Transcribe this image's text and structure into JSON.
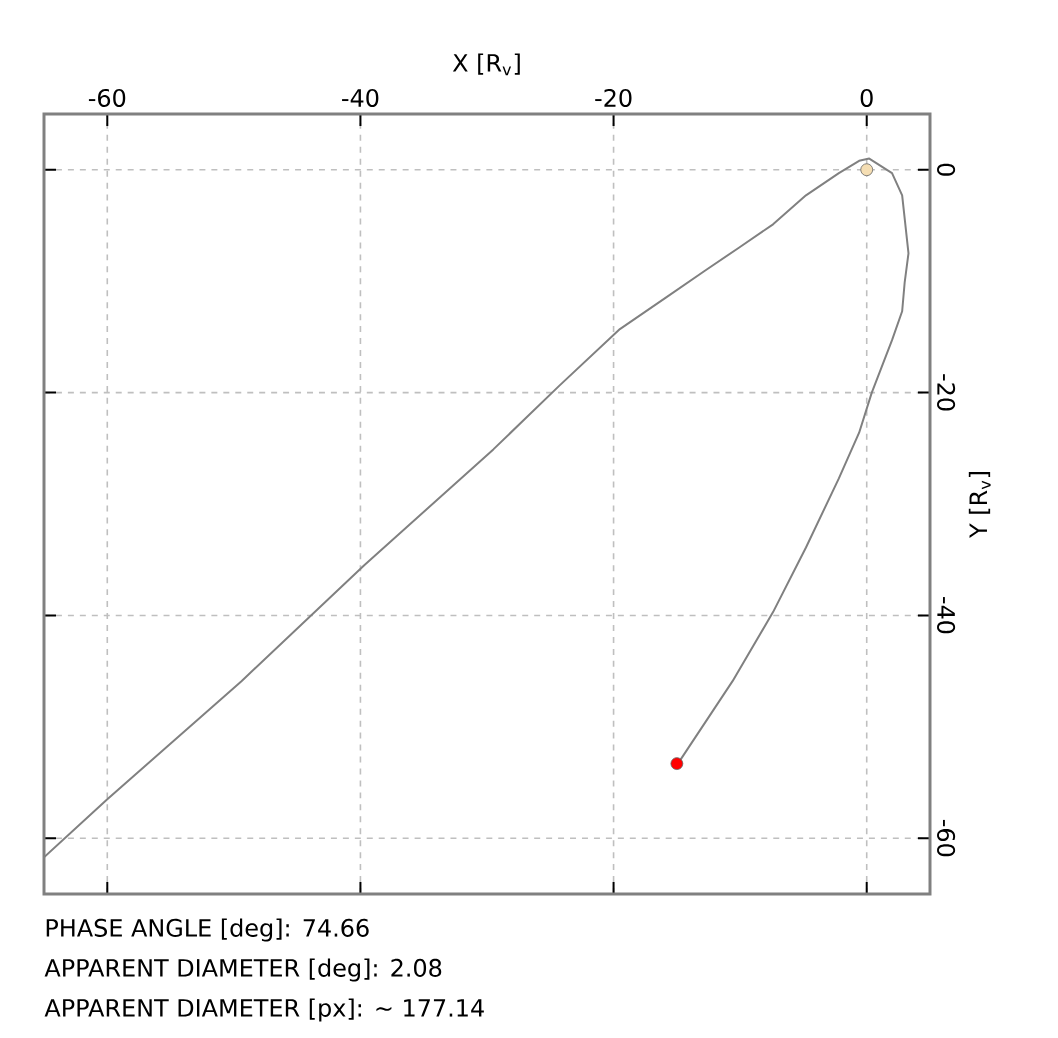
{
  "chart_data": {
    "type": "line",
    "xlabel": "X [R$_{v}$]",
    "ylabel": "Y [R$_{v}$]",
    "xlim": [
      -65,
      5
    ],
    "ylim": [
      -65,
      5
    ],
    "xticks": [
      -60,
      -40,
      -20,
      0
    ],
    "yticks": [
      -60,
      -40,
      -20,
      0
    ],
    "grid": true,
    "series": [
      {
        "color": "#808080",
        "marker": "none",
        "x": [
          -65,
          -60,
          -49.4,
          -39.7,
          -29.5,
          -24.3,
          -19.5,
          -15.9,
          -12.7,
          -10.1,
          -7.4,
          -4.8,
          -2.2,
          -0.6,
          0.2,
          2.0,
          2.8,
          3.3,
          3.0,
          2.8,
          2.0,
          0.4,
          -0.6,
          -2.2,
          -4.8,
          -7.4,
          -10.6,
          -14.8,
          -15.0
        ],
        "values": [
          -61.7,
          -56.5,
          -45.9,
          -35.5,
          -25.1,
          -19.4,
          -14.3,
          -11.5,
          -9.0,
          -7.0,
          -4.9,
          -2.3,
          -0.3,
          0.8,
          1.0,
          -0.3,
          -2.3,
          -7.5,
          -10.1,
          -12.7,
          -15.3,
          -20.0,
          -23.6,
          -27.7,
          -33.9,
          -39.7,
          -45.9,
          -53.1,
          -53.3
        ]
      },
      {
        "type": "scatter",
        "color": "#ff0000",
        "marker": "circle",
        "x": [
          -15.0
        ],
        "values": [
          -53.3
        ]
      },
      {
        "type": "scatter",
        "color": "#f5deb3",
        "marker": "circle",
        "x": [
          0
        ],
        "values": [
          0
        ]
      }
    ],
    "annotations": [
      "PHASE ANGLE [deg]: 74.66",
      "APPARENT DIAMETER [deg]: 2.08",
      "APPARENT DIAMETER [px]: ~ 177.14"
    ]
  }
}
